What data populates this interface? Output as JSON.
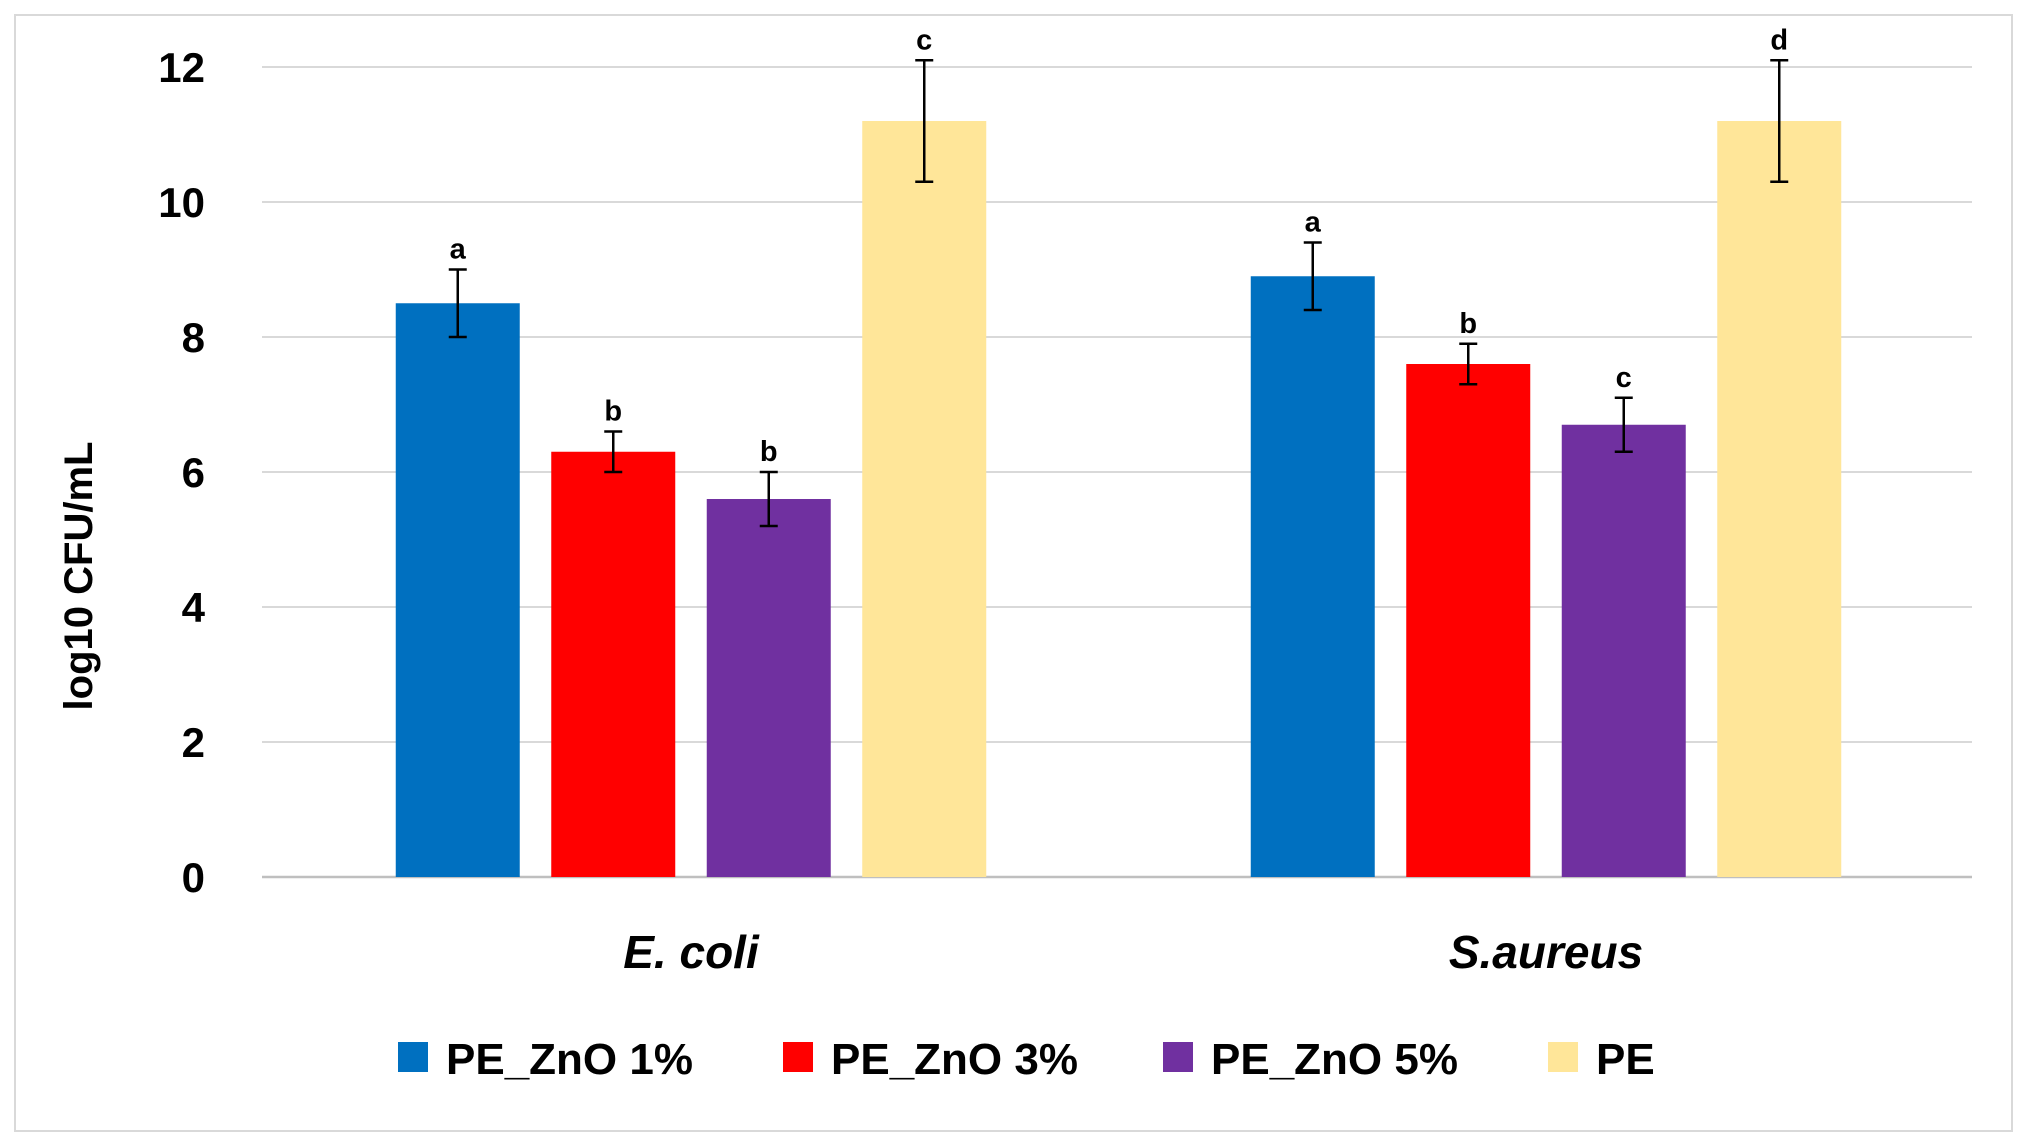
{
  "chart_data": {
    "type": "bar",
    "title": "",
    "xlabel": "",
    "ylabel": "log10 CFU/mL",
    "ylim": [
      0,
      12
    ],
    "yticks": [
      0,
      2,
      4,
      6,
      8,
      10,
      12
    ],
    "grid": true,
    "legend_position": "bottom",
    "categories": [
      "E. coli",
      "S.aureus"
    ],
    "series": [
      {
        "name": "PE_ZnO 1%",
        "color": "#0070C0",
        "values": [
          8.5,
          8.9
        ],
        "errors": [
          0.5,
          0.5
        ],
        "labels": [
          "a",
          "a"
        ]
      },
      {
        "name": "PE_ZnO 3%",
        "color": "#FF0000",
        "values": [
          6.3,
          7.6
        ],
        "errors": [
          0.3,
          0.3
        ],
        "labels": [
          "b",
          "b"
        ]
      },
      {
        "name": "PE_ZnO 5%",
        "color": "#7030A0",
        "values": [
          5.6,
          6.7
        ],
        "errors": [
          0.4,
          0.4
        ],
        "labels": [
          "b",
          "c"
        ]
      },
      {
        "name": "PE",
        "color": "#FFE699",
        "values": [
          11.2,
          11.2
        ],
        "errors": [
          0.9,
          0.9
        ],
        "labels": [
          "c",
          "d"
        ]
      }
    ]
  }
}
